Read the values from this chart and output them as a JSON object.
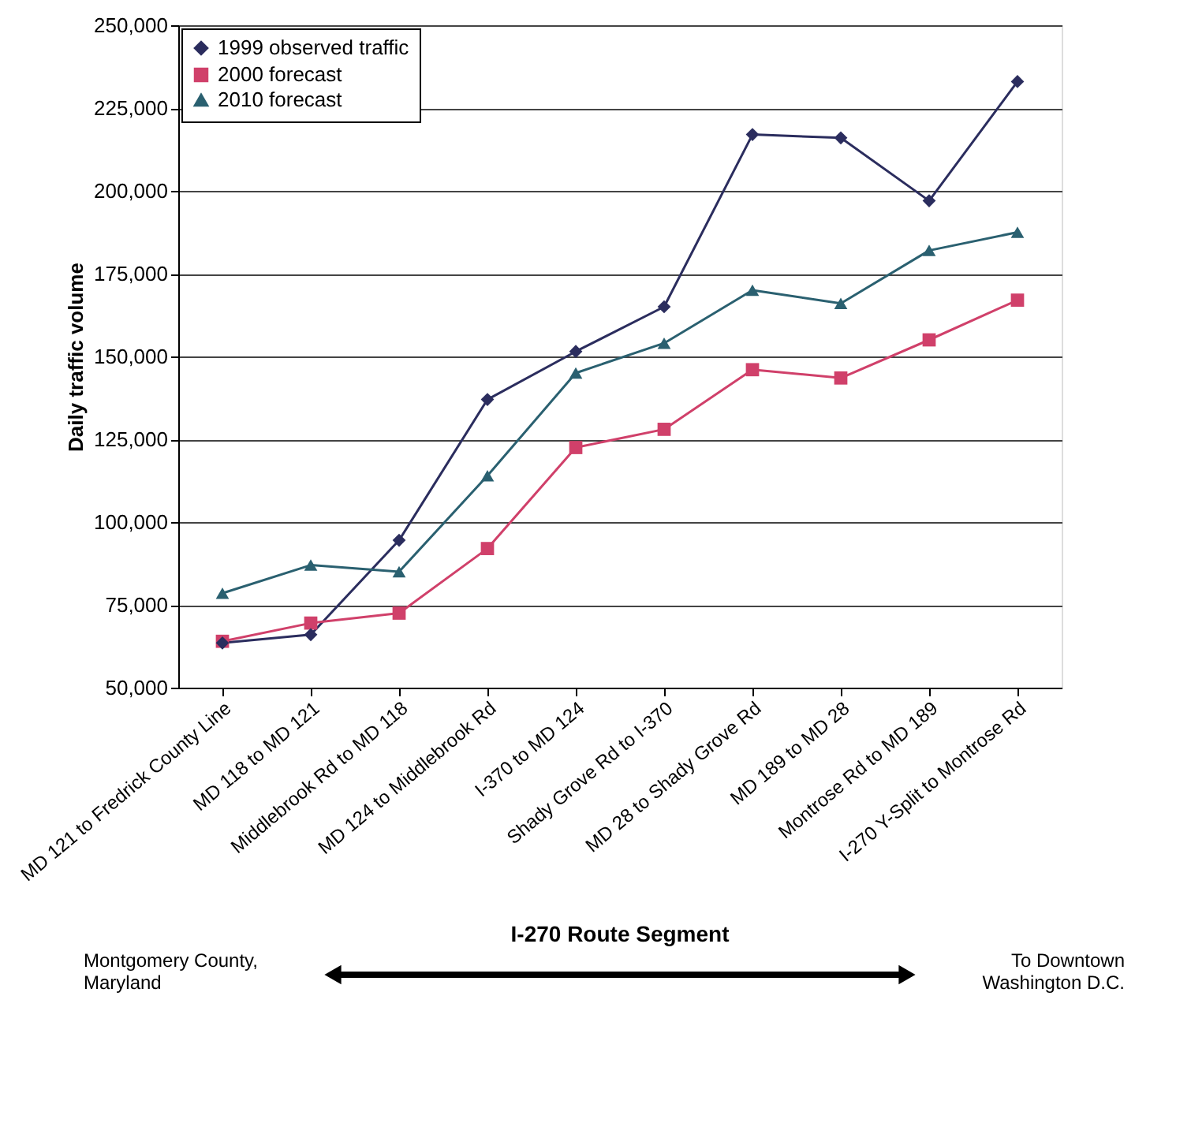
{
  "chart_data": {
    "type": "line",
    "ylabel": "Daily traffic volume",
    "categories": [
      "MD 121 to Fredrick County Line",
      "MD 118 to MD 121",
      "Middlebrook Rd to MD 118",
      "MD 124 to Middlebrook Rd",
      "I-370 to MD 124",
      "Shady Grove Rd to I-370",
      "MD 28 to Shady Grove Rd",
      "MD 189 to MD 28",
      "Montrose Rd to MD 189",
      "I-270 Y-Split to Montrose Rd"
    ],
    "series": [
      {
        "name": "1999 observed traffic",
        "color": "#2b2d5e",
        "marker": "diamond",
        "values": [
          63500,
          66000,
          94500,
          137000,
          151500,
          165000,
          217000,
          216000,
          197000,
          233000
        ]
      },
      {
        "name": "2000 forecast",
        "color": "#d0406a",
        "marker": "square",
        "values": [
          64000,
          69500,
          72500,
          92000,
          122500,
          128000,
          146000,
          143500,
          155000,
          167000
        ]
      },
      {
        "name": "2010 forecast",
        "color": "#2a6070",
        "marker": "triangle",
        "values": [
          78500,
          87000,
          85000,
          114000,
          145000,
          154000,
          170000,
          166000,
          182000,
          187500
        ]
      }
    ],
    "ylim": [
      50000,
      250000
    ],
    "yticks": [
      {
        "value": 50000,
        "label": "50,000"
      },
      {
        "value": 75000,
        "label": "75,000"
      },
      {
        "value": 100000,
        "label": "100,000"
      },
      {
        "value": 125000,
        "label": "125,000"
      },
      {
        "value": 150000,
        "label": "150,000"
      },
      {
        "value": 175000,
        "label": "175,000"
      },
      {
        "value": 200000,
        "label": "200,000"
      },
      {
        "value": 225000,
        "label": "225,000"
      },
      {
        "value": 250000,
        "label": "250,000"
      }
    ],
    "grid": "y",
    "legend": "top left",
    "line_style": "solid",
    "annotations": [
      "I-270 Route Segment",
      "Montgomery County,\nMaryland",
      "To Downtown\nWashington D.C."
    ]
  }
}
